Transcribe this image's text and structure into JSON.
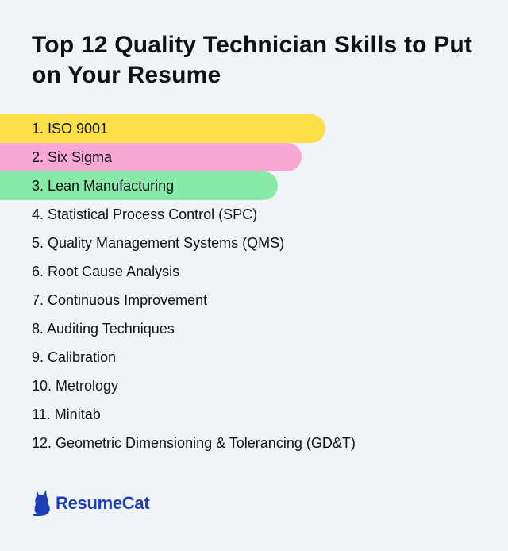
{
  "title": "Top 12 Quality Technician Skills to Put on Your Resume",
  "skills": [
    "1. ISO 9001",
    "2. Six Sigma",
    "3. Lean Manufacturing",
    "4. Statistical Process Control (SPC)",
    "5. Quality Management Systems (QMS)",
    "6. Root Cause Analysis",
    "7. Continuous Improvement",
    "8. Auditing Techniques",
    "9. Calibration",
    "10. Metrology",
    "11. Minitab",
    "12. Geometric Dimensioning & Tolerancing (GD&T)"
  ],
  "highlight_colors": [
    "#fddf4a",
    "#f7a8d5",
    "#88eaa8"
  ],
  "brand": {
    "name": "ResumeCat",
    "icon": "cat-icon",
    "color": "#1f3fb8"
  }
}
